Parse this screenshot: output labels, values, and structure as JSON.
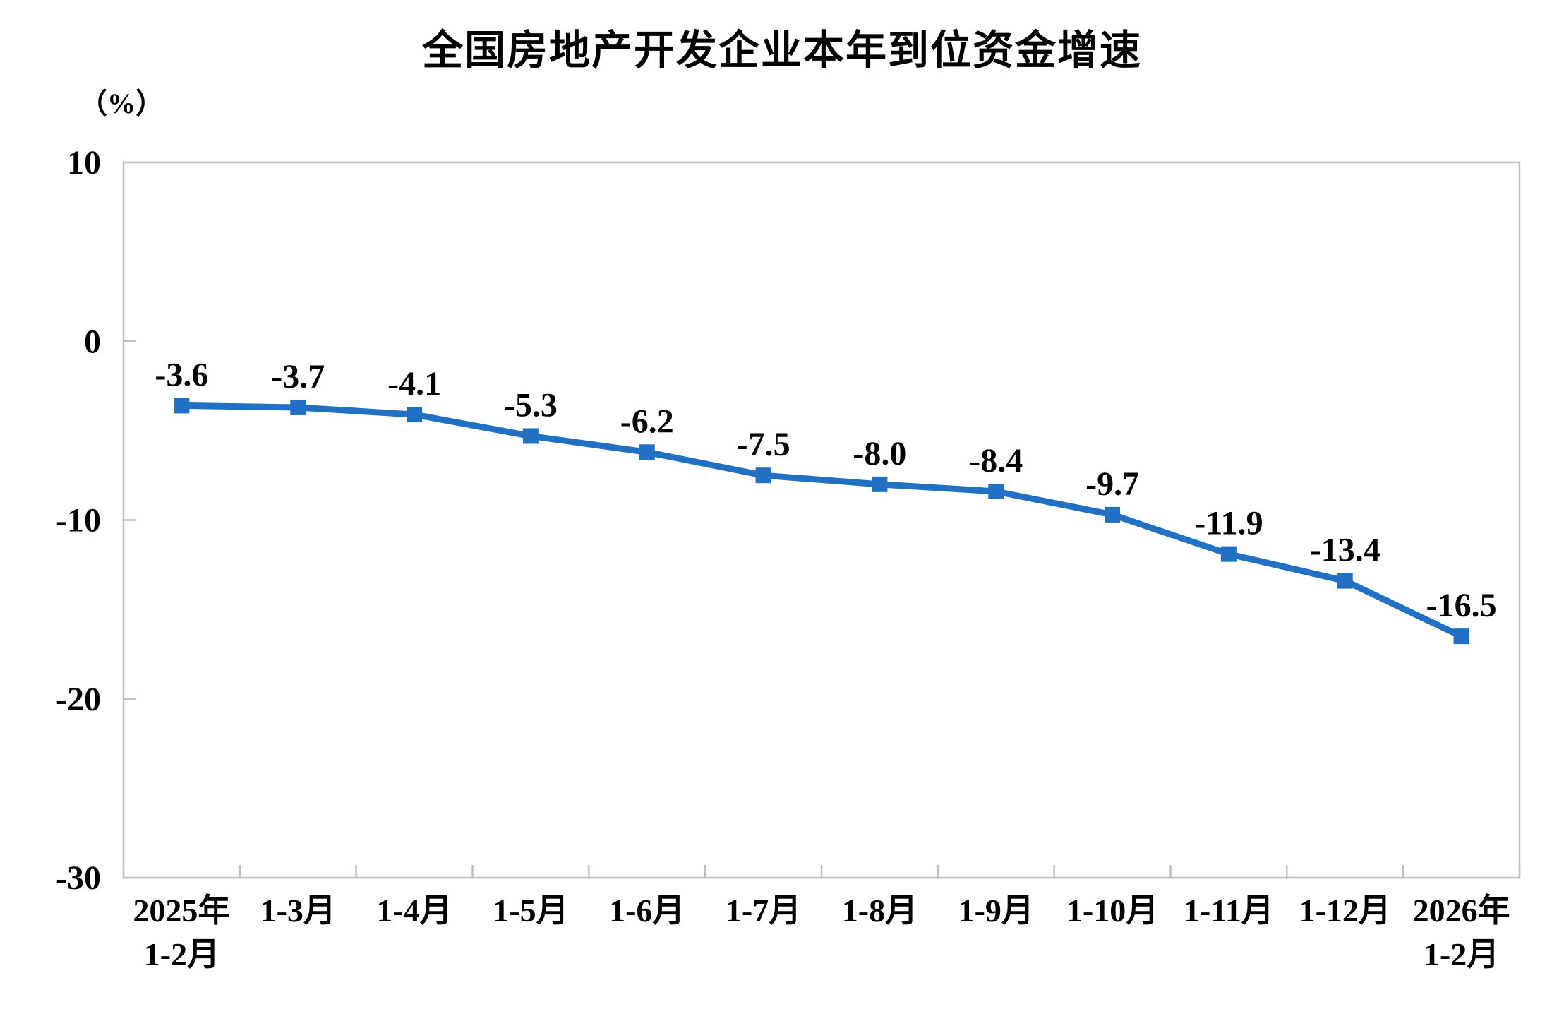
{
  "chart_data": {
    "type": "line",
    "title": "全国房地产开发企业本年到位资金增速",
    "unit_label": "（%）",
    "categories": [
      "2025年\n1-2月",
      "1-3月",
      "1-4月",
      "1-5月",
      "1-6月",
      "1-7月",
      "1-8月",
      "1-9月",
      "1-10月",
      "1-11月",
      "1-12月",
      "2026年\n1-2月"
    ],
    "series": [
      {
        "values": [
          -3.6,
          -3.7,
          -4.1,
          -5.3,
          -6.2,
          -7.5,
          -8.0,
          -8.4,
          -9.7,
          -11.9,
          -13.4,
          -16.5
        ],
        "point_labels": [
          "-3.6",
          "-3.7",
          "-4.1",
          "-5.3",
          "-6.2",
          "-7.5",
          "-8.0",
          "-8.4",
          "-9.7",
          "-11.9",
          "-13.4",
          "-16.5"
        ]
      }
    ],
    "y_ticks": [
      10,
      0,
      -10,
      -20,
      -30
    ],
    "ylim": [
      -30,
      10
    ],
    "xlabel": "",
    "ylabel": "（%）",
    "grid": false,
    "legend": false,
    "marker": "square",
    "colors": {
      "line": "#2170C4",
      "marker": "#2170C4",
      "axis": "#BFBFBF",
      "text": "#000000"
    }
  }
}
